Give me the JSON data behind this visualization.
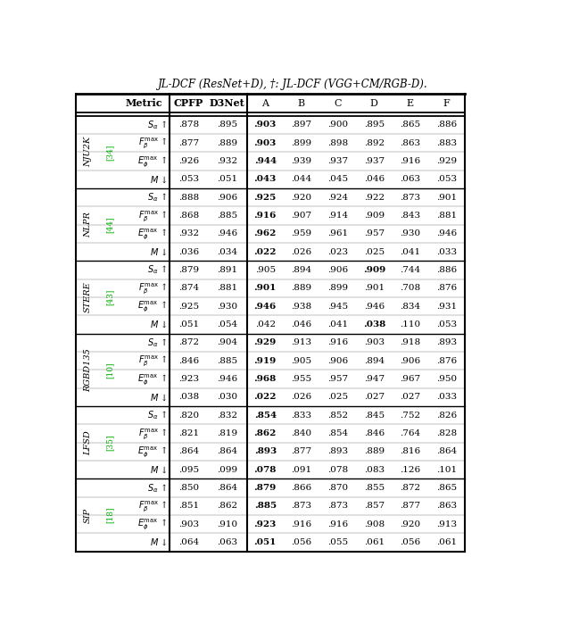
{
  "title_line": "JL-DCF (ResNet+D), †: JL-DCF (VGG+CM/RGB-D).",
  "header": [
    "Metric",
    "CPFP",
    "D3Net",
    "A",
    "B",
    "C",
    "D",
    "E",
    "F"
  ],
  "datasets": [
    {
      "name": "NJU2K",
      "ref": "[34]",
      "rows": [
        {
          "values": [
            ".878",
            ".895",
            ".903",
            ".897",
            ".900",
            ".895",
            ".865",
            ".886"
          ],
          "bold": [
            false,
            false,
            true,
            false,
            false,
            false,
            false,
            false
          ]
        },
        {
          "values": [
            ".877",
            ".889",
            ".903",
            ".899",
            ".898",
            ".892",
            ".863",
            ".883"
          ],
          "bold": [
            false,
            false,
            true,
            false,
            false,
            false,
            false,
            false
          ]
        },
        {
          "values": [
            ".926",
            ".932",
            ".944",
            ".939",
            ".937",
            ".937",
            ".916",
            ".929"
          ],
          "bold": [
            false,
            false,
            true,
            false,
            false,
            false,
            false,
            false
          ]
        },
        {
          "values": [
            ".053",
            ".051",
            ".043",
            ".044",
            ".045",
            ".046",
            ".063",
            ".053"
          ],
          "bold": [
            false,
            false,
            true,
            false,
            false,
            false,
            false,
            false
          ]
        }
      ]
    },
    {
      "name": "NLPR",
      "ref": "[44]",
      "rows": [
        {
          "values": [
            ".888",
            ".906",
            ".925",
            ".920",
            ".924",
            ".922",
            ".873",
            ".901"
          ],
          "bold": [
            false,
            false,
            true,
            false,
            false,
            false,
            false,
            false
          ]
        },
        {
          "values": [
            ".868",
            ".885",
            ".916",
            ".907",
            ".914",
            ".909",
            ".843",
            ".881"
          ],
          "bold": [
            false,
            false,
            true,
            false,
            false,
            false,
            false,
            false
          ]
        },
        {
          "values": [
            ".932",
            ".946",
            ".962",
            ".959",
            ".961",
            ".957",
            ".930",
            ".946"
          ],
          "bold": [
            false,
            false,
            true,
            false,
            false,
            false,
            false,
            false
          ]
        },
        {
          "values": [
            ".036",
            ".034",
            ".022",
            ".026",
            ".023",
            ".025",
            ".041",
            ".033"
          ],
          "bold": [
            false,
            false,
            true,
            false,
            false,
            false,
            false,
            false
          ]
        }
      ]
    },
    {
      "name": "STERE",
      "ref": "[43]",
      "rows": [
        {
          "values": [
            ".879",
            ".891",
            ".905",
            ".894",
            ".906",
            ".909",
            ".744",
            ".886"
          ],
          "bold": [
            false,
            false,
            false,
            false,
            false,
            true,
            false,
            false
          ]
        },
        {
          "values": [
            ".874",
            ".881",
            ".901",
            ".889",
            ".899",
            ".901",
            ".708",
            ".876"
          ],
          "bold": [
            false,
            false,
            true,
            false,
            false,
            false,
            false,
            false
          ]
        },
        {
          "values": [
            ".925",
            ".930",
            ".946",
            ".938",
            ".945",
            ".946",
            ".834",
            ".931"
          ],
          "bold": [
            false,
            false,
            true,
            false,
            false,
            false,
            false,
            false
          ]
        },
        {
          "values": [
            ".051",
            ".054",
            ".042",
            ".046",
            ".041",
            ".038",
            ".110",
            ".053"
          ],
          "bold": [
            false,
            false,
            false,
            false,
            false,
            true,
            false,
            false
          ]
        }
      ]
    },
    {
      "name": "RGBD135",
      "ref": "[10]",
      "rows": [
        {
          "values": [
            ".872",
            ".904",
            ".929",
            ".913",
            ".916",
            ".903",
            ".918",
            ".893"
          ],
          "bold": [
            false,
            false,
            true,
            false,
            false,
            false,
            false,
            false
          ]
        },
        {
          "values": [
            ".846",
            ".885",
            ".919",
            ".905",
            ".906",
            ".894",
            ".906",
            ".876"
          ],
          "bold": [
            false,
            false,
            true,
            false,
            false,
            false,
            false,
            false
          ]
        },
        {
          "values": [
            ".923",
            ".946",
            ".968",
            ".955",
            ".957",
            ".947",
            ".967",
            ".950"
          ],
          "bold": [
            false,
            false,
            true,
            false,
            false,
            false,
            false,
            false
          ]
        },
        {
          "values": [
            ".038",
            ".030",
            ".022",
            ".026",
            ".025",
            ".027",
            ".027",
            ".033"
          ],
          "bold": [
            false,
            false,
            true,
            false,
            false,
            false,
            false,
            false
          ]
        }
      ]
    },
    {
      "name": "LFSD",
      "ref": "[35]",
      "rows": [
        {
          "values": [
            ".820",
            ".832",
            ".854",
            ".833",
            ".852",
            ".845",
            ".752",
            ".826"
          ],
          "bold": [
            false,
            false,
            true,
            false,
            false,
            false,
            false,
            false
          ]
        },
        {
          "values": [
            ".821",
            ".819",
            ".862",
            ".840",
            ".854",
            ".846",
            ".764",
            ".828"
          ],
          "bold": [
            false,
            false,
            true,
            false,
            false,
            false,
            false,
            false
          ]
        },
        {
          "values": [
            ".864",
            ".864",
            ".893",
            ".877",
            ".893",
            ".889",
            ".816",
            ".864"
          ],
          "bold": [
            false,
            false,
            true,
            false,
            false,
            false,
            false,
            false
          ]
        },
        {
          "values": [
            ".095",
            ".099",
            ".078",
            ".091",
            ".078",
            ".083",
            ".126",
            ".101"
          ],
          "bold": [
            false,
            false,
            true,
            false,
            false,
            false,
            false,
            false
          ]
        }
      ]
    },
    {
      "name": "SIP",
      "ref": "[18]",
      "rows": [
        {
          "values": [
            ".850",
            ".864",
            ".879",
            ".866",
            ".870",
            ".855",
            ".872",
            ".865"
          ],
          "bold": [
            false,
            false,
            true,
            false,
            false,
            false,
            false,
            false
          ]
        },
        {
          "values": [
            ".851",
            ".862",
            ".885",
            ".873",
            ".873",
            ".857",
            ".877",
            ".863"
          ],
          "bold": [
            false,
            false,
            true,
            false,
            false,
            false,
            false,
            false
          ]
        },
        {
          "values": [
            ".903",
            ".910",
            ".923",
            ".916",
            ".916",
            ".908",
            ".920",
            ".913"
          ],
          "bold": [
            false,
            false,
            true,
            false,
            false,
            false,
            false,
            false
          ]
        },
        {
          "values": [
            ".064",
            ".063",
            ".051",
            ".056",
            ".055",
            ".061",
            ".056",
            ".061"
          ],
          "bold": [
            false,
            false,
            true,
            false,
            false,
            false,
            false,
            false
          ]
        }
      ]
    }
  ],
  "background_color": "#ffffff",
  "text_color": "#000000",
  "green_color": "#00aa00"
}
